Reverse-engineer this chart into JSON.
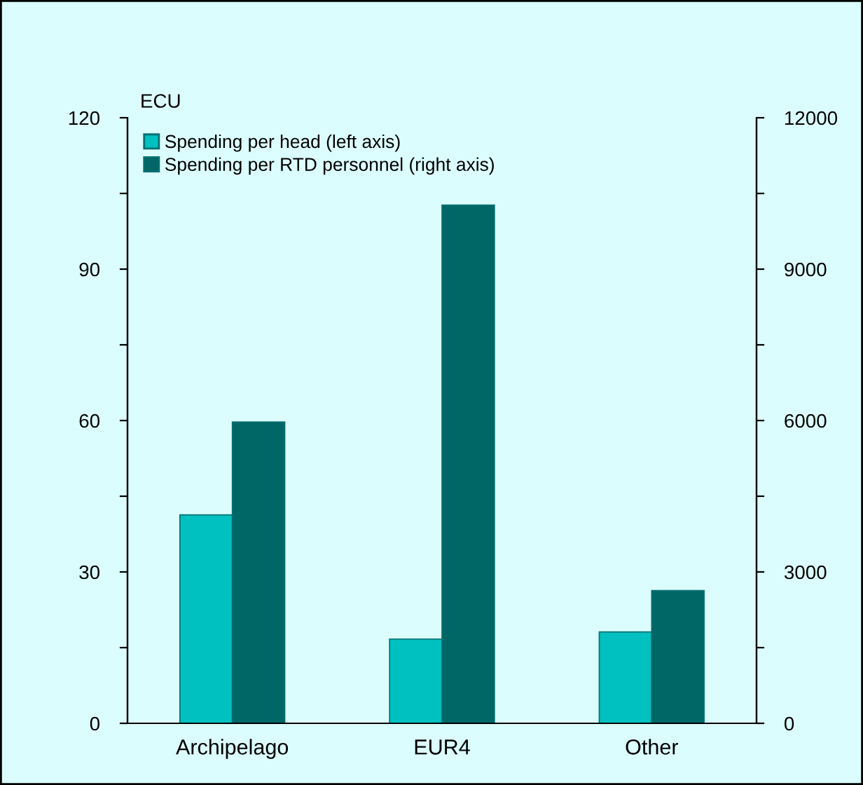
{
  "chart_data": {
    "type": "bar",
    "ylabel": "ECU",
    "categories": [
      "Archipelago",
      "EUR4",
      "Other"
    ],
    "series": [
      {
        "name": "Spending per head (left axis)",
        "color": "#00c0c0",
        "values": [
          41.3,
          16.7,
          18.1
        ]
      },
      {
        "name": "Spending per RTD personnel (right axis)",
        "color": "#006666",
        "values": [
          5970,
          10270,
          2630
        ],
        "axis": "y2"
      }
    ],
    "ylim": [
      0,
      120
    ],
    "yticks": [
      0,
      {
        "value": 15,
        "label": null
      },
      30,
      {
        "value": 45,
        "label": null
      },
      60,
      {
        "value": 75,
        "label": null
      },
      90,
      {
        "value": 105,
        "label": null
      },
      120
    ],
    "y2lim": [
      0,
      12000
    ],
    "y2ticks": [
      0,
      {
        "value": 1500,
        "label": null
      },
      3000,
      {
        "value": 4500,
        "label": null
      },
      6000,
      {
        "value": 7500,
        "label": null
      },
      9000,
      {
        "value": 10500,
        "label": null
      },
      12000
    ],
    "legend": "top left",
    "grid": false
  }
}
